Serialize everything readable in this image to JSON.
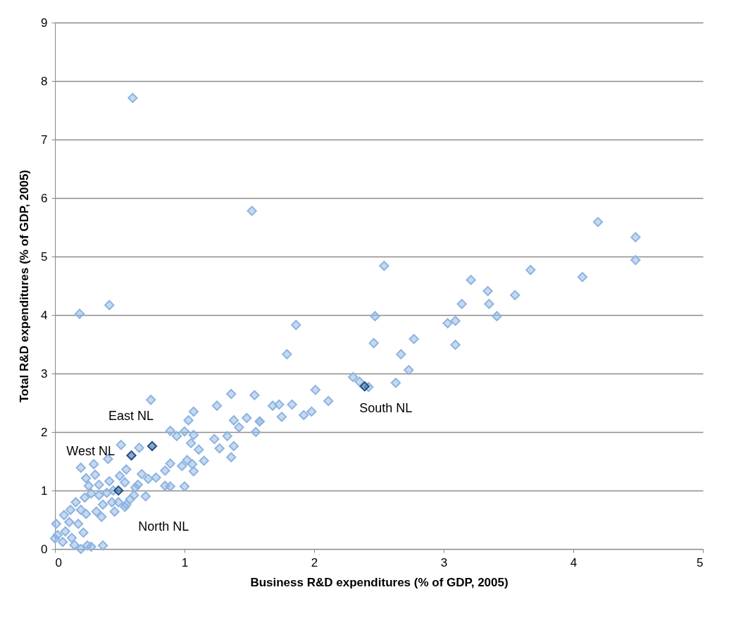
{
  "chart_data": {
    "type": "scatter",
    "xlabel": "Business R&D expenditures (% of GDP, 2005)",
    "ylabel": "Total R&D expenditures (% of GDP, 2005)",
    "xlim": [
      0,
      5
    ],
    "xticks": [
      0,
      1,
      2,
      3,
      4,
      5
    ],
    "ylim": [
      0,
      9
    ],
    "yticks": [
      0,
      1,
      2,
      3,
      4,
      5,
      6,
      7,
      8,
      9
    ],
    "grid": "y",
    "marker": "diamond",
    "legend": false,
    "series": [
      {
        "color": "#8db3e2",
        "x": [
          0.6,
          1.52,
          0.19,
          0.42,
          2.54,
          2.46,
          2.47,
          1.86,
          1.79,
          2.77,
          2.67,
          2.73,
          2.63,
          2.3,
          2.35,
          2.42,
          2.01,
          2.11,
          1.83,
          1.73,
          1.68,
          1.75,
          1.92,
          1.98,
          1.54,
          1.58,
          1.55,
          4.19,
          4.48,
          4.48,
          3.67,
          4.07,
          3.21,
          3.34,
          3.14,
          3.35,
          3.55,
          3.41,
          3.03,
          3.09,
          3.09,
          0.74,
          1.36,
          1.25,
          1.07,
          1.03,
          0.89,
          0.94,
          1.0,
          1.07,
          1.05,
          1.11,
          1.38,
          1.48,
          1.58,
          1.42,
          1.33,
          1.23,
          1.38,
          1.27,
          1.36,
          1.15,
          1.07,
          1.02,
          0.98,
          0.89,
          0.85,
          0.85,
          0.78,
          0.65,
          0.51,
          0.7,
          0.54,
          0.61,
          0.72,
          0.67,
          0.55,
          0.54,
          0.64,
          0.2,
          0.3,
          0.41,
          0.24,
          0.31,
          0.26,
          0.34,
          0.42,
          0.4,
          0.34,
          0.23,
          0.16,
          0.2,
          0.12,
          0.07,
          0.01,
          0.02,
          0.08,
          0.11,
          0.18,
          0.24,
          0.32,
          0.37,
          0.44,
          0.49,
          0.55,
          0.46,
          0.06,
          0.15,
          0.25,
          0.37,
          0.0,
          0.13,
          0.22,
          0.2,
          0.28,
          0.89,
          1.0,
          1.06,
          0.45,
          0.58,
          0.28,
          0.36,
          0.5,
          0.62
        ],
        "values": [
          7.71,
          5.78,
          4.02,
          4.17,
          4.84,
          3.52,
          3.98,
          3.83,
          3.33,
          3.59,
          3.33,
          3.06,
          2.84,
          2.94,
          2.86,
          2.77,
          2.72,
          2.53,
          2.47,
          2.47,
          2.45,
          2.26,
          2.29,
          2.35,
          2.63,
          2.18,
          2.0,
          5.59,
          5.33,
          4.94,
          4.77,
          4.65,
          4.6,
          4.41,
          4.19,
          4.19,
          4.34,
          3.98,
          3.86,
          3.9,
          3.49,
          2.55,
          2.65,
          2.45,
          2.35,
          2.2,
          2.02,
          1.93,
          2.01,
          1.95,
          1.81,
          1.7,
          2.2,
          2.24,
          2.18,
          2.08,
          1.93,
          1.88,
          1.76,
          1.72,
          1.57,
          1.51,
          1.33,
          1.52,
          1.42,
          1.46,
          1.34,
          1.08,
          1.22,
          1.73,
          1.78,
          0.9,
          0.72,
          0.92,
          1.2,
          1.28,
          1.36,
          1.14,
          1.1,
          1.39,
          1.45,
          1.54,
          1.21,
          1.27,
          1.08,
          1.1,
          1.16,
          0.96,
          0.92,
          0.88,
          0.8,
          0.67,
          0.67,
          0.58,
          0.43,
          0.24,
          0.3,
          0.46,
          0.43,
          0.6,
          0.64,
          0.76,
          0.8,
          0.8,
          0.76,
          0.64,
          0.12,
          0.07,
          0.06,
          0.06,
          0.18,
          0.19,
          0.28,
          0.0,
          0.04,
          1.07,
          1.07,
          1.45,
          1.0,
          0.85,
          0.95,
          0.55,
          1.25,
          1.05
        ]
      },
      {
        "color": "#1f4e8c",
        "x": [
          0.75,
          0.59,
          0.49,
          2.39
        ],
        "values": [
          1.76,
          1.6,
          1.0,
          2.78
        ]
      }
    ],
    "annotations": [
      {
        "text": "East NL",
        "x": 0.75,
        "y": 1.76
      },
      {
        "text": "West NL",
        "x": 0.59,
        "y": 1.6
      },
      {
        "text": "North NL",
        "x": 0.49,
        "y": 1.0
      },
      {
        "text": "South NL",
        "x": 2.39,
        "y": 2.78
      }
    ]
  }
}
